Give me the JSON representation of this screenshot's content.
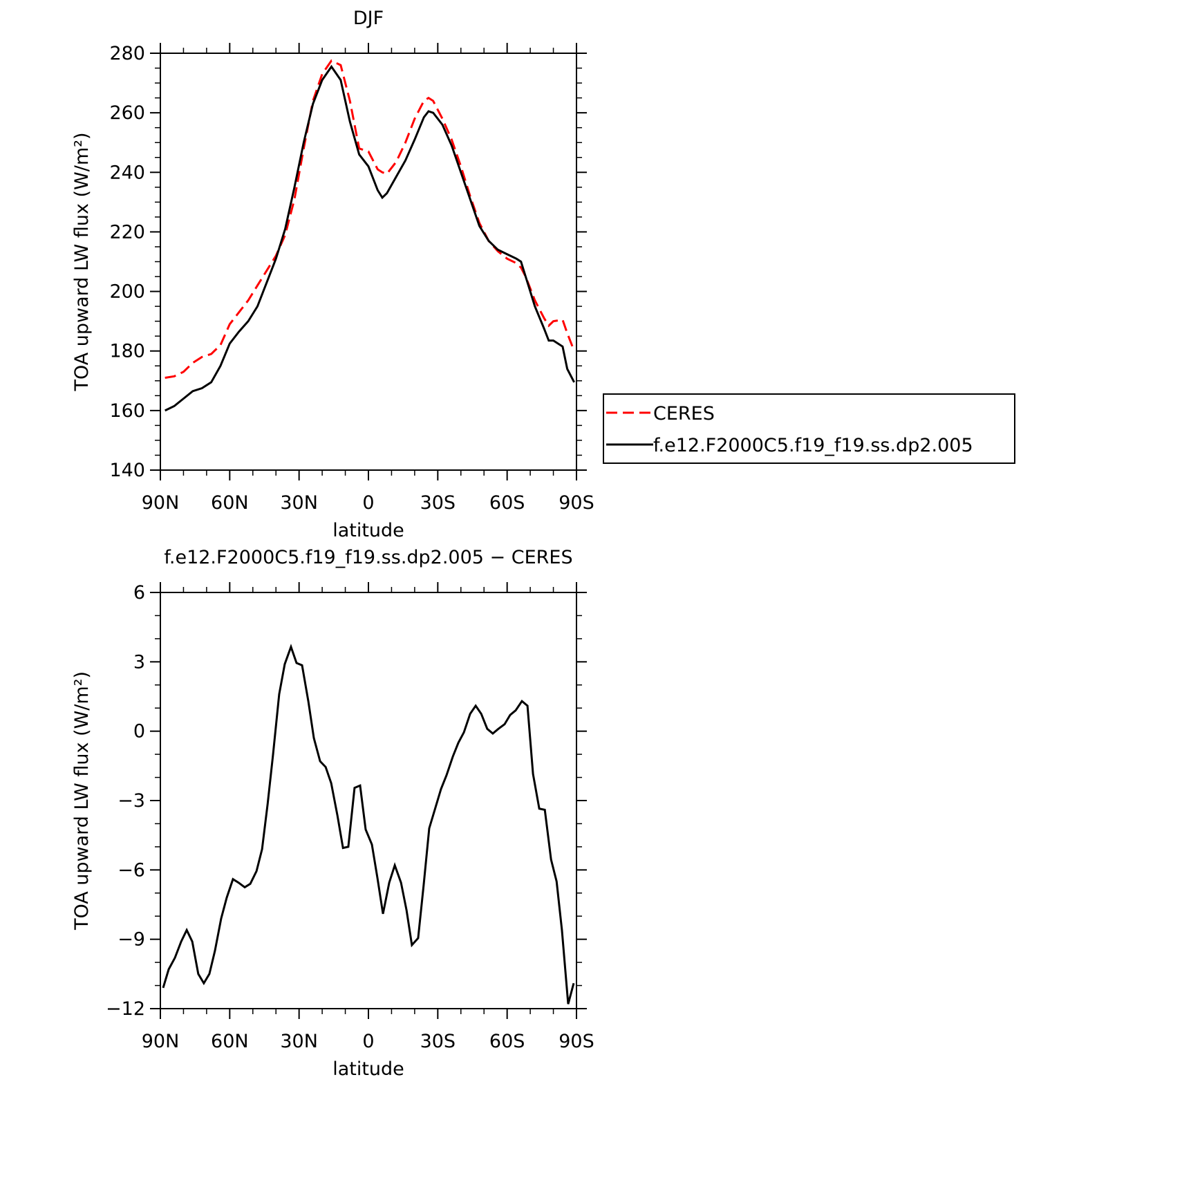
{
  "chart_data": [
    {
      "type": "line",
      "title": "DJF",
      "x_label": "latitude",
      "y_label": "TOA upward LW flux (W/m²)",
      "xlim": [
        90,
        -90
      ],
      "xticks": [
        {
          "value": 90,
          "label": "90N"
        },
        {
          "value": 60,
          "label": "60N"
        },
        {
          "value": 30,
          "label": "30N"
        },
        0,
        {
          "value": -30,
          "label": "30S"
        },
        {
          "value": -60,
          "label": "60S"
        },
        {
          "value": -90,
          "label": "90S"
        }
      ],
      "ylim": [
        140,
        280
      ],
      "yticks": [
        140,
        160,
        180,
        200,
        220,
        240,
        260,
        280
      ],
      "legend": "right",
      "x": [
        88,
        84,
        80,
        76,
        72,
        68,
        64,
        60,
        56,
        52,
        48,
        44,
        40,
        36,
        32,
        28,
        24,
        20,
        16,
        12,
        8,
        4,
        0,
        -4,
        -6,
        -8,
        -12,
        -16,
        -20,
        -24,
        -26,
        -28,
        -32,
        -36,
        -40,
        -44,
        -48,
        -52,
        -56,
        -60,
        -64,
        -66,
        -68,
        -72,
        -76,
        -78,
        -80,
        -84,
        -86,
        -89
      ],
      "series": [
        {
          "name": "CERES",
          "color": "#ff0000",
          "dash": "dashed",
          "values": [
            171,
            171.5,
            173,
            176,
            178,
            179,
            182,
            189,
            193,
            197,
            202,
            207,
            212,
            219,
            231,
            248,
            264,
            273,
            277.5,
            276,
            264,
            248,
            247,
            241,
            240,
            239.5,
            243.5,
            250,
            258,
            264,
            265,
            264,
            258,
            251,
            242,
            232,
            223,
            217,
            213.5,
            211,
            209.5,
            208,
            205,
            197,
            191,
            188.5,
            190,
            190.5,
            186,
            180
          ]
        },
        {
          "name": "f.e12.F2000C5.f19_f19.ss.dp2.005",
          "color": "#000000",
          "dash": "solid",
          "values": [
            160,
            161.5,
            164,
            166.5,
            167.5,
            169.5,
            175,
            182.5,
            186.5,
            190,
            195,
            203,
            211,
            221,
            235,
            250,
            263,
            271,
            275.5,
            271,
            257,
            246,
            242,
            234,
            231.5,
            233,
            238.5,
            244,
            251,
            258.5,
            260.5,
            260,
            256,
            249,
            240,
            231,
            222,
            217,
            214,
            212.5,
            211,
            210,
            205,
            195,
            187.5,
            183.5,
            183.5,
            181.5,
            174,
            169.5
          ]
        }
      ]
    },
    {
      "type": "line",
      "title": "f.e12.F2000C5.f19_f19.ss.dp2.005 − CERES",
      "x_label": "latitude",
      "y_label": "TOA upward LW flux (W/m²)",
      "xlim": [
        90,
        -90
      ],
      "xticks": [
        {
          "value": 90,
          "label": "90N"
        },
        {
          "value": 60,
          "label": "60N"
        },
        {
          "value": 30,
          "label": "30N"
        },
        0,
        {
          "value": -30,
          "label": "30S"
        },
        {
          "value": -60,
          "label": "60S"
        },
        {
          "value": -90,
          "label": "90S"
        }
      ],
      "ylim": [
        -12,
        6
      ],
      "yticks": [
        {
          "value": -12,
          "label": "−12"
        },
        {
          "value": -9,
          "label": "−9"
        },
        {
          "value": -6,
          "label": "−6"
        },
        {
          "value": -3,
          "label": "−3"
        },
        0,
        3,
        6
      ],
      "x": [
        88.8,
        86.4,
        83.7,
        81,
        78.6,
        76.2,
        73.6,
        71.2,
        68.8,
        66.4,
        63.7,
        61.3,
        58.6,
        56.2,
        53.5,
        51.1,
        48.4,
        46,
        43.6,
        41.3,
        38.6,
        36.2,
        33.5,
        31.1,
        28.7,
        26,
        23.6,
        20.9,
        18.5,
        16.1,
        13.4,
        11,
        8.7,
        6,
        3.6,
        1.2,
        -1.5,
        -3.9,
        -6.3,
        -9,
        -11.4,
        -14.1,
        -16.5,
        -18.8,
        -21.5,
        -23.9,
        -26.3,
        -29,
        -31.4,
        -33.8,
        -36.5,
        -38.9,
        -41.3,
        -44,
        -46.4,
        -48.8,
        -51.4,
        -53.8,
        -56.2,
        -58.9,
        -61.3,
        -63.7,
        -66.4,
        -68.8,
        -71.2,
        -73.9,
        -76.3,
        -79,
        -81.4,
        -83.7,
        -86.4,
        -88.8
      ],
      "series": [
        {
          "color": "#000000",
          "dash": "solid",
          "values": [
            -11.1,
            -10.3,
            -9.8,
            -9.1,
            -8.6,
            -9.1,
            -10.5,
            -10.9,
            -10.5,
            -9.5,
            -8.1,
            -7.2,
            -6.4,
            -6.55,
            -6.75,
            -6.6,
            -6.05,
            -5.1,
            -3.15,
            -1.05,
            1.6,
            2.9,
            3.65,
            2.95,
            2.85,
            1.3,
            -0.3,
            -1.3,
            -1.55,
            -2.25,
            -3.65,
            -5.05,
            -5.0,
            -2.45,
            -2.35,
            -4.25,
            -4.9,
            -6.35,
            -7.9,
            -6.55,
            -5.8,
            -6.55,
            -7.75,
            -9.25,
            -8.95,
            -6.65,
            -4.2,
            -3.3,
            -2.5,
            -1.9,
            -1.1,
            -0.5,
            -0.05,
            0.75,
            1.1,
            0.75,
            0.1,
            -0.1,
            0.1,
            0.3,
            0.7,
            0.9,
            1.3,
            1.1,
            -1.85,
            -3.35,
            -3.4,
            -5.55,
            -6.5,
            -8.6,
            -11.8,
            -10.9
          ]
        }
      ]
    }
  ]
}
